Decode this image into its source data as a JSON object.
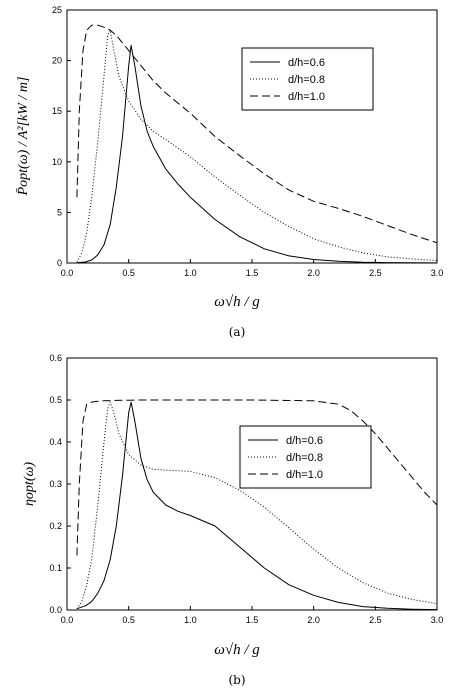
{
  "chart_data": [
    {
      "type": "line",
      "caption": "(a)",
      "xlabel": "ω√h / g",
      "ylabel": "P̄opt(ω) / A²[kW / m]",
      "xlim": [
        0,
        3.0
      ],
      "ylim": [
        0,
        25
      ],
      "xticks": [
        "0.0",
        "0.5",
        "1.0",
        "1.5",
        "2.0",
        "2.5",
        "3.0"
      ],
      "yticks": [
        "0",
        "5",
        "10",
        "15",
        "20",
        "25"
      ],
      "legend": "top-right",
      "series": [
        {
          "name": "d/h=0.6",
          "style": "solid",
          "x": [
            0.08,
            0.15,
            0.2,
            0.25,
            0.3,
            0.35,
            0.4,
            0.45,
            0.5,
            0.52,
            0.55,
            0.6,
            0.65,
            0.7,
            0.8,
            0.9,
            1.0,
            1.2,
            1.4,
            1.6,
            1.8,
            2.0,
            2.2,
            2.4,
            2.6,
            2.8,
            3.0
          ],
          "values": [
            0.02,
            0.1,
            0.3,
            0.8,
            1.8,
            3.8,
            7.5,
            12.5,
            19.5,
            21.5,
            19.5,
            15.5,
            13.0,
            11.5,
            9.3,
            7.8,
            6.5,
            4.3,
            2.6,
            1.4,
            0.7,
            0.35,
            0.18,
            0.08,
            0.04,
            0.02,
            0.01
          ]
        },
        {
          "name": "d/h=0.8",
          "style": "dotted",
          "x": [
            0.08,
            0.12,
            0.16,
            0.2,
            0.25,
            0.3,
            0.33,
            0.35,
            0.38,
            0.42,
            0.5,
            0.6,
            0.7,
            0.8,
            1.0,
            1.2,
            1.4,
            1.6,
            1.8,
            2.0,
            2.2,
            2.4,
            2.6,
            2.8,
            3.0
          ],
          "values": [
            0.1,
            1.0,
            3.0,
            6.5,
            12.0,
            18.5,
            22.5,
            23.0,
            21.0,
            18.5,
            16.0,
            14.2,
            13.0,
            12.2,
            10.5,
            8.5,
            6.7,
            5.0,
            3.6,
            2.4,
            1.6,
            1.0,
            0.6,
            0.4,
            0.25
          ]
        },
        {
          "name": "d/h=1.0",
          "style": "dashed",
          "x": [
            0.08,
            0.1,
            0.13,
            0.16,
            0.2,
            0.25,
            0.3,
            0.35,
            0.4,
            0.5,
            0.6,
            0.7,
            0.8,
            0.9,
            1.0,
            1.2,
            1.4,
            1.6,
            1.8,
            2.0,
            2.2,
            2.4,
            2.6,
            2.8,
            3.0
          ],
          "values": [
            6.5,
            15.0,
            21.0,
            23.0,
            23.5,
            23.5,
            23.3,
            23.0,
            22.5,
            21.0,
            19.5,
            18.0,
            16.8,
            15.8,
            14.8,
            12.5,
            10.6,
            8.8,
            7.2,
            6.1,
            5.4,
            4.6,
            3.7,
            2.8,
            2.0
          ]
        }
      ]
    },
    {
      "type": "line",
      "caption": "(b)",
      "xlabel": "ω√h / g",
      "ylabel": "ηopt(ω)",
      "xlim": [
        0,
        3.0
      ],
      "ylim": [
        0,
        0.6
      ],
      "xticks": [
        "0.0",
        "0.5",
        "1.0",
        "1.5",
        "2.0",
        "2.5",
        "3.0"
      ],
      "yticks": [
        "0.0",
        "0.1",
        "0.2",
        "0.3",
        "0.4",
        "0.5",
        "0.6"
      ],
      "legend": "right",
      "series": [
        {
          "name": "d/h=0.6",
          "style": "solid",
          "x": [
            0.08,
            0.15,
            0.2,
            0.25,
            0.3,
            0.35,
            0.4,
            0.45,
            0.5,
            0.52,
            0.55,
            0.6,
            0.65,
            0.7,
            0.8,
            0.9,
            1.0,
            1.2,
            1.4,
            1.6,
            1.8,
            2.0,
            2.2,
            2.4,
            2.6,
            2.8,
            3.0
          ],
          "values": [
            0.003,
            0.01,
            0.02,
            0.04,
            0.07,
            0.12,
            0.2,
            0.32,
            0.47,
            0.495,
            0.45,
            0.36,
            0.31,
            0.28,
            0.25,
            0.235,
            0.225,
            0.2,
            0.15,
            0.1,
            0.06,
            0.035,
            0.018,
            0.008,
            0.004,
            0.002,
            0.001
          ]
        },
        {
          "name": "d/h=0.8",
          "style": "dotted",
          "x": [
            0.08,
            0.12,
            0.16,
            0.2,
            0.25,
            0.3,
            0.33,
            0.35,
            0.38,
            0.42,
            0.5,
            0.6,
            0.7,
            0.8,
            1.0,
            1.2,
            1.4,
            1.6,
            1.8,
            2.0,
            2.2,
            2.4,
            2.6,
            2.8,
            3.0
          ],
          "values": [
            0.003,
            0.02,
            0.06,
            0.12,
            0.25,
            0.4,
            0.48,
            0.495,
            0.47,
            0.42,
            0.37,
            0.345,
            0.335,
            0.333,
            0.33,
            0.315,
            0.285,
            0.245,
            0.195,
            0.145,
            0.1,
            0.065,
            0.04,
            0.025,
            0.015
          ]
        },
        {
          "name": "d/h=1.0",
          "style": "dashed",
          "x": [
            0.08,
            0.1,
            0.13,
            0.16,
            0.2,
            0.25,
            0.3,
            0.4,
            0.6,
            1.0,
            1.5,
            2.0,
            2.2,
            2.3,
            2.4,
            2.5,
            2.6,
            2.7,
            2.8,
            2.9,
            3.0
          ],
          "values": [
            0.13,
            0.3,
            0.45,
            0.49,
            0.495,
            0.497,
            0.498,
            0.499,
            0.5,
            0.5,
            0.5,
            0.498,
            0.49,
            0.475,
            0.45,
            0.42,
            0.385,
            0.35,
            0.315,
            0.28,
            0.25
          ]
        }
      ]
    }
  ]
}
